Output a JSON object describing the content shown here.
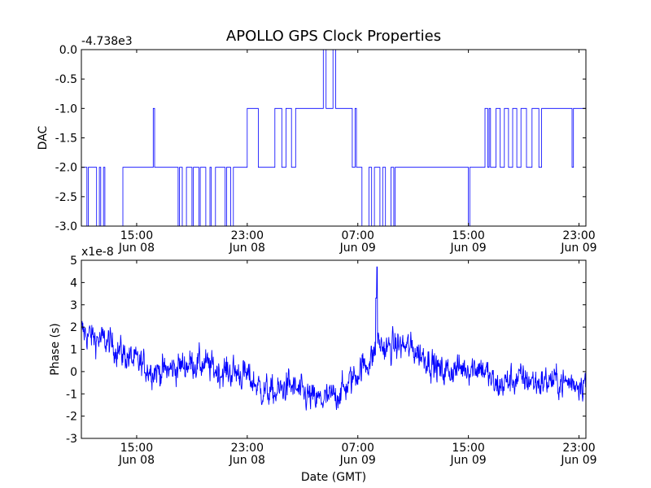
{
  "title": "APOLLO GPS Clock Properties",
  "chart_data": [
    {
      "type": "line",
      "title": "APOLLO GPS Clock Properties",
      "ylabel": "DAC",
      "xlabel": "",
      "offset_label": "-4.738e3",
      "x_tick_labels": [
        {
          "time": "15:00",
          "date": "Jun 08"
        },
        {
          "time": "23:00",
          "date": "Jun 08"
        },
        {
          "time": "07:00",
          "date": "Jun 09"
        },
        {
          "time": "15:00",
          "date": "Jun 09"
        },
        {
          "time": "23:00",
          "date": "Jun 09"
        }
      ],
      "xlim": [
        "Jun 08 11:00",
        "Jun 09 23:30"
      ],
      "x_tick_hours_from_jun08_0000": [
        15,
        23,
        31,
        39,
        47
      ],
      "ylim": [
        -3.0,
        0.0
      ],
      "y_ticks": [
        "-3.0",
        "-2.5",
        "-2.0",
        "-1.5",
        "-1.0",
        "-0.5",
        "0.0"
      ],
      "color": "#0000ff",
      "series": [
        {
          "x_hours": [
            11.0,
            11.4,
            11.5,
            12.0,
            12.1,
            12.3,
            12.4,
            12.6,
            12.7,
            14.0,
            14.1,
            16.2,
            16.3,
            16.5,
            18.0,
            18.1,
            18.3,
            18.6,
            19.0,
            19.1,
            19.5,
            19.6,
            20.0,
            20.3,
            20.4,
            20.7,
            21.0,
            21.4,
            21.5,
            21.8,
            22.0,
            22.4,
            23.0,
            23.8,
            24.0,
            25.0,
            25.5,
            25.8,
            26.2,
            26.5,
            26.6,
            27.0,
            27.2,
            28.5,
            28.7,
            29.2,
            29.4,
            29.5,
            30.6,
            30.8,
            30.9,
            31.0,
            31.3,
            31.8,
            32.0,
            32.2,
            32.6,
            32.8,
            33.0,
            33.4,
            33.6,
            33.7,
            34.0,
            34.3,
            34.5,
            34.6,
            35.0,
            35.3,
            39.0,
            39.1,
            40.2,
            40.4,
            40.5,
            40.6,
            41.0,
            41.3,
            41.6,
            41.9,
            42.2,
            42.5,
            42.8,
            43.2,
            43.6,
            44.1,
            44.3,
            46.0,
            46.5,
            46.6,
            46.9,
            47.4
          ],
          "y": [
            -2.0,
            -3.0,
            -2.0,
            -2.0,
            -3.0,
            -2.0,
            -3.0,
            -2.0,
            -3.0,
            -2.0,
            -2.0,
            -1.0,
            -2.0,
            -2.0,
            -3.0,
            -2.0,
            -3.0,
            -2.0,
            -3.0,
            -2.0,
            -3.0,
            -2.0,
            -3.0,
            -2.0,
            -3.0,
            -2.0,
            -2.0,
            -3.0,
            -2.0,
            -3.0,
            -2.0,
            -2.0,
            -1.0,
            -2.0,
            -2.0,
            -1.0,
            -2.0,
            -1.0,
            -2.0,
            -1.0,
            -1.0,
            -1.0,
            -1.0,
            0.0,
            -1.0,
            0.0,
            -1.0,
            -1.0,
            -2.0,
            -1.0,
            -2.0,
            -2.0,
            -3.0,
            -2.0,
            -3.0,
            -2.0,
            -3.0,
            -2.0,
            -3.0,
            -2.0,
            -3.0,
            -2.0,
            -2.0,
            -2.0,
            -2.0,
            -2.0,
            -2.0,
            -2.0,
            -3.0,
            -2.0,
            -1.0,
            -2.0,
            -1.0,
            -2.0,
            -1.0,
            -2.0,
            -1.0,
            -2.0,
            -1.0,
            -2.0,
            -1.0,
            -2.0,
            -1.0,
            -2.0,
            -1.0,
            -1.0,
            -2.0,
            -1.0,
            -1.0,
            -1.0
          ]
        }
      ]
    },
    {
      "type": "line",
      "title": "",
      "ylabel": "Phase (s)",
      "xlabel": "Date (GMT)",
      "offset_label": "x1e-8",
      "x_tick_labels": [
        {
          "time": "15:00",
          "date": "Jun 08"
        },
        {
          "time": "23:00",
          "date": "Jun 08"
        },
        {
          "time": "07:00",
          "date": "Jun 09"
        },
        {
          "time": "15:00",
          "date": "Jun 09"
        },
        {
          "time": "23:00",
          "date": "Jun 09"
        }
      ],
      "xlim": [
        "Jun 08 11:00",
        "Jun 09 23:30"
      ],
      "x_tick_hours_from_jun08_0000": [
        15,
        23,
        31,
        39,
        47
      ],
      "ylim": [
        -3,
        5
      ],
      "y_ticks": [
        "-3",
        "-2",
        "-1",
        "0",
        "1",
        "2",
        "3",
        "4",
        "5"
      ],
      "color": "#0000ff",
      "noise_amplitude": 0.8,
      "series": [
        {
          "x_hours": [
            11.0,
            12.0,
            13.0,
            14.0,
            15.0,
            16.0,
            17.0,
            18.0,
            19.0,
            20.0,
            21.0,
            22.0,
            23.0,
            24.0,
            25.0,
            26.0,
            27.0,
            28.0,
            29.0,
            30.0,
            31.0,
            32.0,
            32.5,
            33.0,
            34.0,
            35.0,
            36.0,
            37.0,
            38.0,
            39.0,
            40.0,
            41.0,
            42.0,
            43.0,
            44.0,
            45.0,
            46.0,
            47.0,
            47.5
          ],
          "y": [
            1.8,
            1.5,
            1.3,
            0.8,
            0.4,
            0.1,
            0.0,
            0.2,
            0.4,
            0.3,
            0.0,
            0.0,
            -0.2,
            -0.8,
            -1.0,
            -0.6,
            -1.0,
            -1.3,
            -1.2,
            -0.8,
            0.0,
            0.6,
            1.3,
            1.0,
            1.2,
            1.0,
            0.6,
            0.0,
            0.1,
            0.2,
            0.2,
            -0.7,
            -0.4,
            -0.3,
            -0.5,
            -0.4,
            -0.5,
            -0.5,
            -0.4
          ]
        }
      ]
    }
  ]
}
